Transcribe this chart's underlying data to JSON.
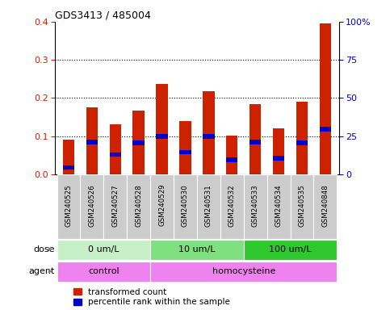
{
  "title": "GDS3413 / 485004",
  "samples": [
    "GSM240525",
    "GSM240526",
    "GSM240527",
    "GSM240528",
    "GSM240529",
    "GSM240530",
    "GSM240531",
    "GSM240532",
    "GSM240533",
    "GSM240534",
    "GSM240535",
    "GSM240848"
  ],
  "red_values": [
    0.09,
    0.175,
    0.132,
    0.168,
    0.236,
    0.14,
    0.217,
    0.101,
    0.184,
    0.121,
    0.191,
    0.395
  ],
  "blue_values": [
    0.018,
    0.085,
    0.052,
    0.082,
    0.1,
    0.058,
    0.1,
    0.038,
    0.085,
    0.042,
    0.082,
    0.118
  ],
  "ylim": [
    0,
    0.4
  ],
  "yticks": [
    0,
    0.1,
    0.2,
    0.3,
    0.4
  ],
  "y2ticks": [
    0,
    25,
    50,
    75,
    100
  ],
  "y2labels": [
    "0",
    "25",
    "50",
    "75",
    "100%"
  ],
  "dose_groups": [
    {
      "label": "0 um/L",
      "start": 0,
      "end": 4,
      "color": "#c8f0c8"
    },
    {
      "label": "10 um/L",
      "start": 4,
      "end": 8,
      "color": "#80e080"
    },
    {
      "label": "100 um/L",
      "start": 8,
      "end": 12,
      "color": "#30c830"
    }
  ],
  "agent_groups": [
    {
      "label": "control",
      "start": 0,
      "end": 4
    },
    {
      "label": "homocysteine",
      "start": 4,
      "end": 12
    }
  ],
  "agent_color": "#ee82ee",
  "bar_width": 0.5,
  "red_color": "#cc2200",
  "blue_color": "#0000cc",
  "axis_label_color_left": "#cc2200",
  "axis_label_color_right": "#0000cc",
  "bg_color": "#ffffff",
  "sample_bg": "#cccccc",
  "legend_red": "transformed count",
  "legend_blue": "percentile rank within the sample"
}
